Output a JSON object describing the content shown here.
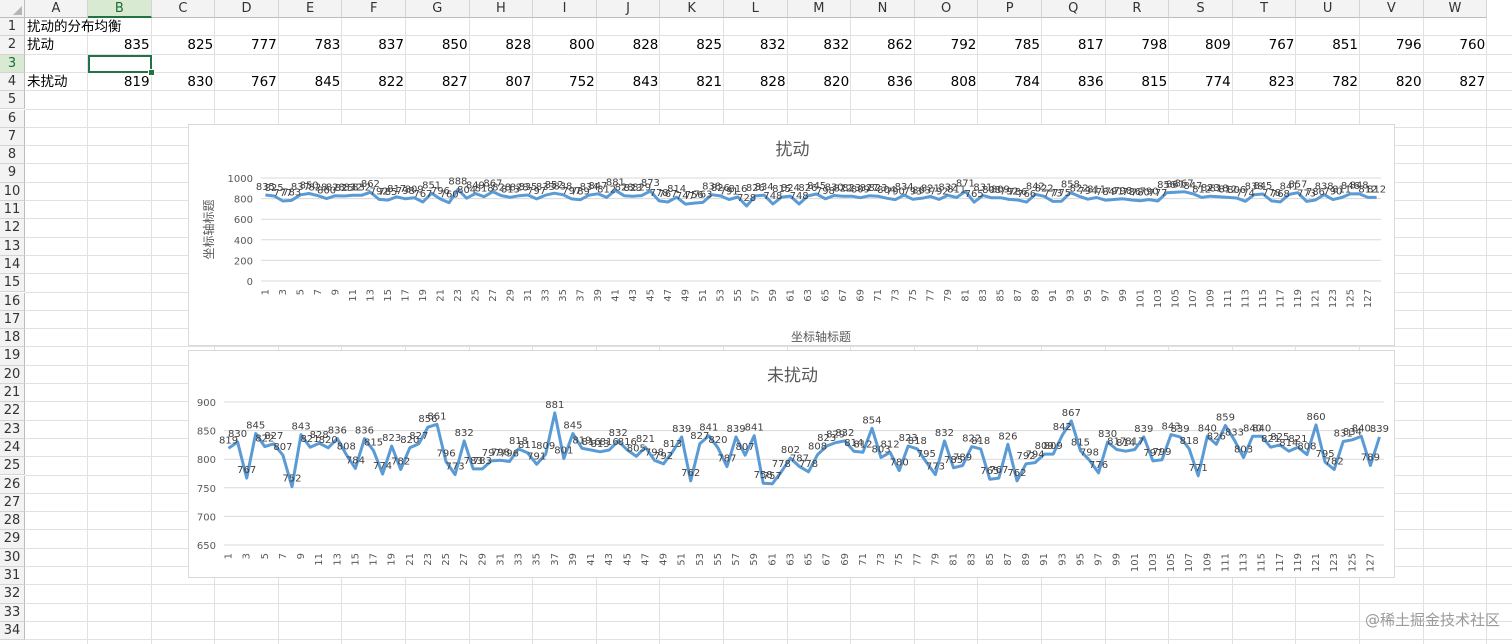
{
  "spreadsheet": {
    "columns": [
      "A",
      "B",
      "C",
      "D",
      "E",
      "F",
      "G",
      "H",
      "I",
      "J",
      "K",
      "L",
      "M",
      "N",
      "O",
      "P",
      "Q",
      "R",
      "S",
      "T",
      "U",
      "V",
      "W"
    ],
    "selected_column": "B",
    "selected_row": 3,
    "rows": [
      "1",
      "2",
      "3",
      "4",
      "5",
      "6",
      "7",
      "8",
      "9",
      "10",
      "11",
      "12",
      "13",
      "14",
      "15",
      "16",
      "17",
      "18",
      "19",
      "20",
      "21",
      "22",
      "23",
      "24",
      "25",
      "26",
      "27",
      "28",
      "29",
      "30",
      "31",
      "32",
      "33",
      "34"
    ],
    "a1": "扰动的分布均衡",
    "a2": "扰动",
    "a4": "未扰动",
    "row2_values": [
      "835",
      "825",
      "777",
      "783",
      "837",
      "850",
      "828",
      "800",
      "828",
      "825",
      "832",
      "832",
      "862",
      "792",
      "785",
      "817",
      "798",
      "809",
      "767",
      "851",
      "796",
      "760"
    ],
    "row4_values": [
      "819",
      "830",
      "767",
      "845",
      "822",
      "827",
      "807",
      "752",
      "843",
      "821",
      "828",
      "820",
      "836",
      "808",
      "784",
      "836",
      "815",
      "774",
      "823",
      "782",
      "820",
      "827"
    ]
  },
  "watermark": "@稀土掘金技术社区",
  "chart_data": [
    {
      "type": "line",
      "title": "扰动",
      "xlabel": "坐标轴标题",
      "ylabel": "坐标轴标题",
      "ylim": [
        0,
        1000
      ],
      "yticks": [
        "0",
        "200",
        "400",
        "600",
        "800",
        "1000"
      ],
      "grid": true,
      "color": "#5b9bd5",
      "x": [
        1,
        2,
        3,
        4,
        5,
        6,
        7,
        8,
        9,
        10,
        11,
        12,
        13,
        14,
        15,
        16,
        17,
        18,
        19,
        20,
        21,
        22,
        23,
        24,
        25,
        26,
        27,
        28,
        29,
        30,
        31,
        32,
        33,
        34,
        35,
        36,
        37,
        38,
        39,
        40,
        41,
        42,
        43,
        44,
        45,
        46,
        47,
        48,
        49,
        50,
        51,
        52,
        53,
        54,
        55,
        56,
        57,
        58,
        59,
        60,
        61,
        62,
        63,
        64,
        65,
        66,
        67,
        68,
        69,
        70,
        71,
        72,
        73,
        74,
        75,
        76,
        77,
        78,
        79,
        80,
        81,
        82,
        83,
        84,
        85,
        86,
        87,
        88,
        89,
        90,
        91,
        92,
        93,
        94,
        95,
        96,
        97,
        98,
        99,
        100,
        101,
        102,
        103,
        104,
        105,
        106,
        107,
        108,
        109,
        110,
        111,
        112,
        113,
        114,
        115,
        116,
        117,
        118,
        119,
        120,
        121,
        122,
        123,
        124,
        125,
        126,
        127,
        128
      ],
      "xticks": [
        "1",
        "3",
        "5",
        "7",
        "9",
        "11",
        "13",
        "15",
        "17",
        "19",
        "21",
        "23",
        "25",
        "27",
        "29",
        "31",
        "33",
        "35",
        "37",
        "39",
        "41",
        "43",
        "45",
        "47",
        "49",
        "51",
        "53",
        "55",
        "57",
        "59",
        "61",
        "63",
        "65",
        "67",
        "69",
        "71",
        "73",
        "75",
        "77",
        "79",
        "81",
        "83",
        "85",
        "87",
        "89",
        "91",
        "93",
        "95",
        "97",
        "99",
        "101",
        "103",
        "105",
        "107",
        "109",
        "111",
        "113",
        "115",
        "117",
        "119",
        "121",
        "123",
        "125",
        "127"
      ],
      "values": [
        835,
        825,
        777,
        783,
        837,
        850,
        828,
        800,
        828,
        825,
        832,
        832,
        862,
        792,
        785,
        817,
        798,
        809,
        767,
        851,
        796,
        760,
        888,
        804,
        849,
        818,
        867,
        828,
        813,
        828,
        835,
        797,
        833,
        852,
        838,
        797,
        789,
        834,
        847,
        812,
        881,
        828,
        823,
        829,
        873,
        778,
        767,
        814,
        747,
        756,
        763,
        838,
        826,
        791,
        816,
        728,
        826,
        834,
        748,
        815,
        824,
        748,
        826,
        845,
        798,
        830,
        822,
        823,
        809,
        827,
        823,
        804,
        790,
        834,
        793,
        803,
        821,
        792,
        832,
        811,
        871,
        765,
        831,
        808,
        809,
        792,
        786,
        766,
        842,
        822,
        773,
        775,
        858,
        822,
        794,
        811,
        784,
        791,
        798,
        786,
        780,
        790,
        777,
        856,
        861,
        867,
        847,
        812,
        823,
        818,
        812,
        806,
        774,
        838,
        845,
        778,
        768,
        841,
        857,
        773,
        786,
        838,
        790,
        811,
        846,
        848,
        812,
        812
      ]
    },
    {
      "type": "line",
      "title": "未扰动",
      "xlabel": "",
      "ylabel": "",
      "ylim": [
        650,
        900
      ],
      "yticks": [
        "650",
        "700",
        "750",
        "800",
        "850",
        "900"
      ],
      "grid": true,
      "color": "#5b9bd5",
      "x": [
        1,
        2,
        3,
        4,
        5,
        6,
        7,
        8,
        9,
        10,
        11,
        12,
        13,
        14,
        15,
        16,
        17,
        18,
        19,
        20,
        21,
        22,
        23,
        24,
        25,
        26,
        27,
        28,
        29,
        30,
        31,
        32,
        33,
        34,
        35,
        36,
        37,
        38,
        39,
        40,
        41,
        42,
        43,
        44,
        45,
        46,
        47,
        48,
        49,
        50,
        51,
        52,
        53,
        54,
        55,
        56,
        57,
        58,
        59,
        60,
        61,
        62,
        63,
        64,
        65,
        66,
        67,
        68,
        69,
        70,
        71,
        72,
        73,
        74,
        75,
        76,
        77,
        78,
        79,
        80,
        81,
        82,
        83,
        84,
        85,
        86,
        87,
        88,
        89,
        90,
        91,
        92,
        93,
        94,
        95,
        96,
        97,
        98,
        99,
        100,
        101,
        102,
        103,
        104,
        105,
        106,
        107,
        108,
        109,
        110,
        111,
        112,
        113,
        114,
        115,
        116,
        117,
        118,
        119,
        120,
        121,
        122,
        123,
        124,
        125,
        126,
        127,
        128
      ],
      "xticks": [
        "1",
        "3",
        "5",
        "7",
        "9",
        "11",
        "13",
        "15",
        "17",
        "19",
        "21",
        "23",
        "25",
        "27",
        "29",
        "31",
        "33",
        "35",
        "37",
        "39",
        "41",
        "43",
        "45",
        "47",
        "49",
        "51",
        "53",
        "55",
        "57",
        "59",
        "61",
        "63",
        "65",
        "67",
        "69",
        "71",
        "73",
        "75",
        "77",
        "79",
        "81",
        "83",
        "85",
        "87",
        "89",
        "91",
        "93",
        "95",
        "97",
        "99",
        "101",
        "103",
        "105",
        "107",
        "109",
        "111",
        "113",
        "115",
        "117",
        "119",
        "121",
        "123",
        "125",
        "127"
      ],
      "values": [
        819,
        830,
        767,
        845,
        822,
        827,
        807,
        752,
        843,
        821,
        828,
        820,
        836,
        808,
        784,
        836,
        815,
        774,
        823,
        782,
        820,
        827,
        856,
        861,
        796,
        773,
        832,
        783,
        783,
        797,
        798,
        796,
        818,
        811,
        791,
        809,
        881,
        801,
        845,
        819,
        816,
        813,
        816,
        832,
        816,
        805,
        821,
        798,
        792,
        813,
        839,
        762,
        827,
        841,
        820,
        787,
        839,
        807,
        841,
        758,
        757,
        778,
        802,
        787,
        778,
        808,
        823,
        829,
        832,
        814,
        812,
        854,
        803,
        812,
        780,
        823,
        818,
        795,
        773,
        832,
        785,
        789,
        822,
        818,
        765,
        767,
        826,
        762,
        792,
        794,
        809,
        809,
        842,
        867,
        815,
        798,
        776,
        830,
        817,
        814,
        817,
        839,
        797,
        799,
        843,
        839,
        818,
        771,
        840,
        826,
        859,
        833,
        803,
        840,
        840,
        821,
        825,
        814,
        821,
        808,
        860,
        795,
        782,
        831,
        834,
        840,
        789,
        839
      ]
    }
  ]
}
